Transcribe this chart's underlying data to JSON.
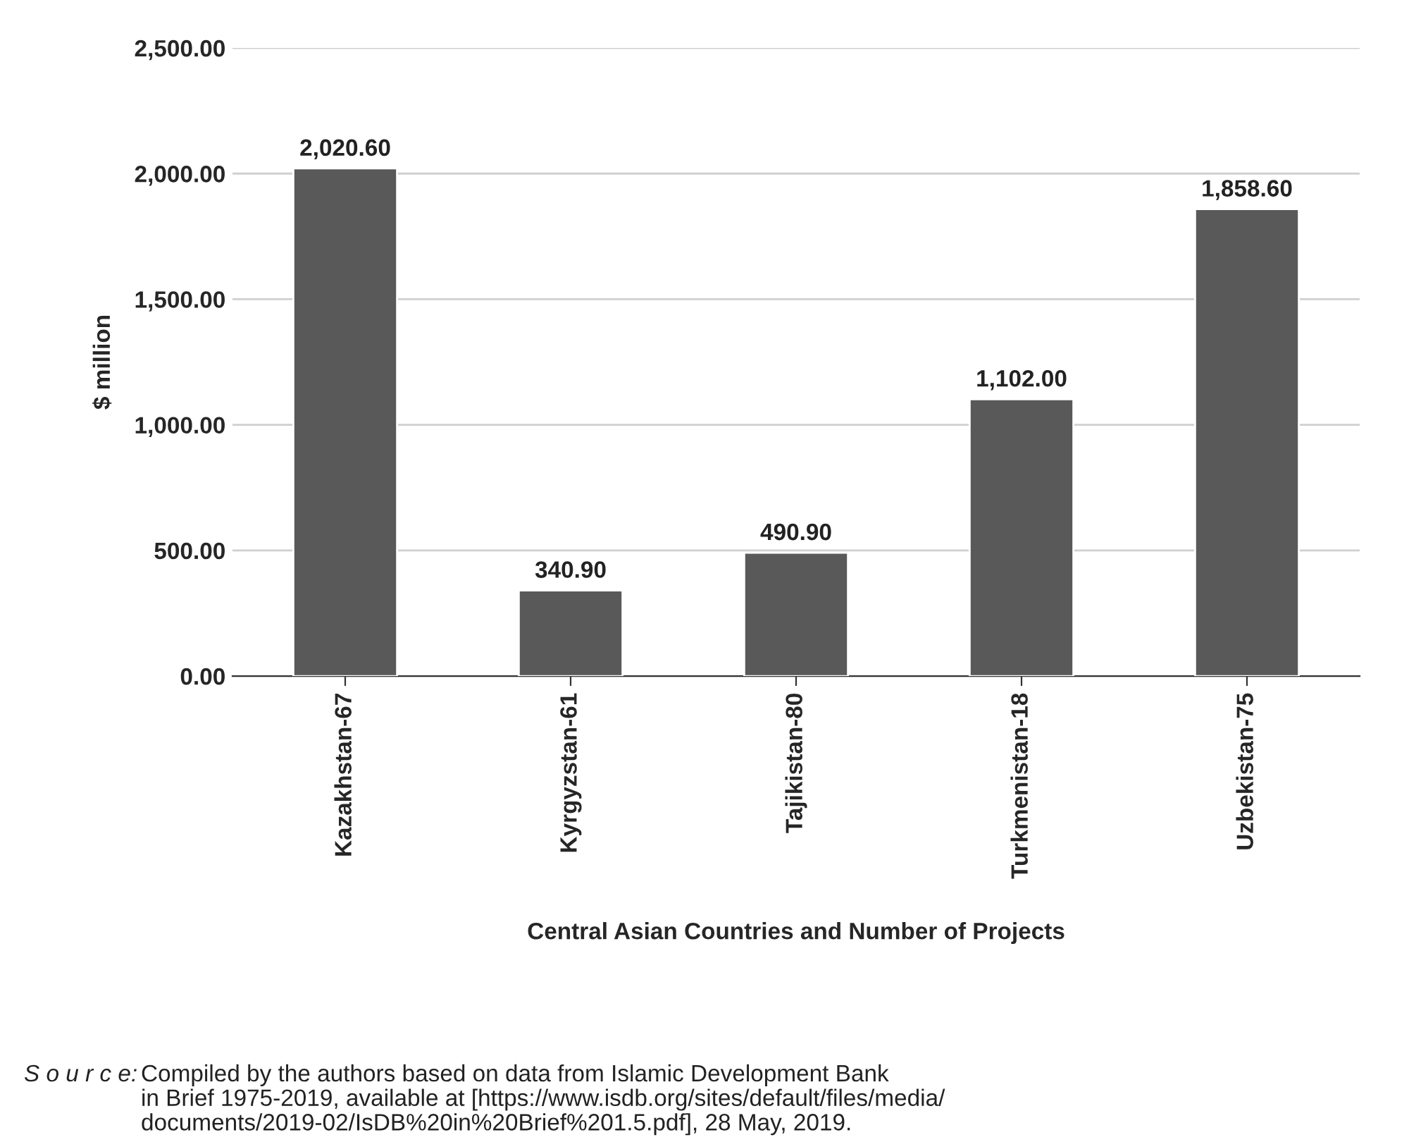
{
  "chart_data": {
    "type": "bar",
    "categories": [
      "Kazakhstan-67",
      "Kyrgyzstan-61",
      "Tajikistan-80",
      "Turkmenistan-18",
      "Uzbekistan-75"
    ],
    "values": [
      2020.6,
      340.9,
      490.9,
      1102.0,
      1858.6
    ],
    "value_labels": [
      "2,020.60",
      "340.90",
      "490.90",
      "1,102.00",
      "1,858.60"
    ],
    "color": "#595959",
    "xlabel": "Central Asian Countries and Number of Projects",
    "ylabel": "$ million",
    "ylim": [
      0,
      2500
    ],
    "yticks": [
      {
        "value": 0,
        "label": "0.00"
      },
      {
        "value": 500,
        "label": "500.00"
      },
      {
        "value": 1000,
        "label": "1,000.00"
      },
      {
        "value": 1500,
        "label": "1,500.00"
      },
      {
        "value": 2000,
        "label": "2,000.00"
      },
      {
        "value": 2500,
        "label": "2,500.00"
      }
    ],
    "grid": "y",
    "legend": false,
    "annotations": [
      "S o u r c e:",
      "Compiled by the authors based on data from Islamic Development Bank\nin Brief 1975-2019, available at [https://www.isdb.org/sites/default/files/media/\ndocuments/2019-02/IsDB%20in%20Brief%201.5.pdf], 28 May, 2019."
    ]
  }
}
